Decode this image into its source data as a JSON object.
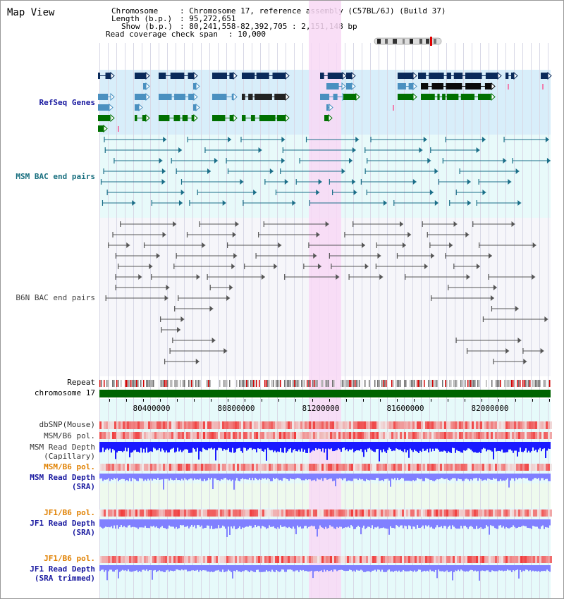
{
  "view": {
    "title": "Map View"
  },
  "info": {
    "chromosome_key": "Chromosome",
    "chromosome_value": "Chromosome 17, reference assembly (C57BL/6J) (Build 37)",
    "length_key": "Length (b.p.)",
    "length_value": "95,272,651",
    "show_key": "Show (b.p.)",
    "show_value": "80,241,558-82,392,705 : 2,151,148 bp",
    "span_key": "Read coverage check span",
    "span_value": "10,000"
  },
  "tracks": {
    "refseq": "RefSeq Genes",
    "msm_bac": "MSM BAC end pairs",
    "b6n_bac": "B6N BAC end pairs",
    "repeat": "Repeat",
    "chromosome": "chromosome 17",
    "dbsnp": "dbSNP(Mouse)",
    "msm_b6_pol_1": "MSM/B6 pol.",
    "msm_depth_cap_1": "MSM Read Depth",
    "msm_depth_cap_2": "(Capillary)",
    "msm_b6_pol_2": "MSM/B6 pol.",
    "msm_depth_sra_1": "MSM Read Depth",
    "msm_depth_sra_2": "(SRA)",
    "jf1_b6_pol_1": "JF1/B6 pol.",
    "jf1_depth_sra_1": "JF1 Read Depth",
    "jf1_depth_sra_2": "(SRA)",
    "jf1_b6_pol_2": "JF1/B6 pol.",
    "jf1_depth_trim_1": "JF1 Read Depth",
    "jf1_depth_trim_2": "(SRA trimmed)"
  },
  "axis": {
    "ticks": [
      "80400000",
      "80800000",
      "81200000",
      "81600000",
      "82000000"
    ]
  },
  "colors": {
    "refseq_bg": "#d8eefa",
    "msm_bg": "#e8fafa",
    "b6n_bg": "#f6f6fa",
    "highlight": "#f8d8f4",
    "gene_dark": "#0a2a5a",
    "gene_light": "#4a90c0",
    "gene_green": "#007000",
    "bac_teal": "#1a6e88",
    "bac_grey": "#555555",
    "chromosome": "#006400",
    "depth_blue": "#1a1aff",
    "depth_light": "#8080ff"
  }
}
